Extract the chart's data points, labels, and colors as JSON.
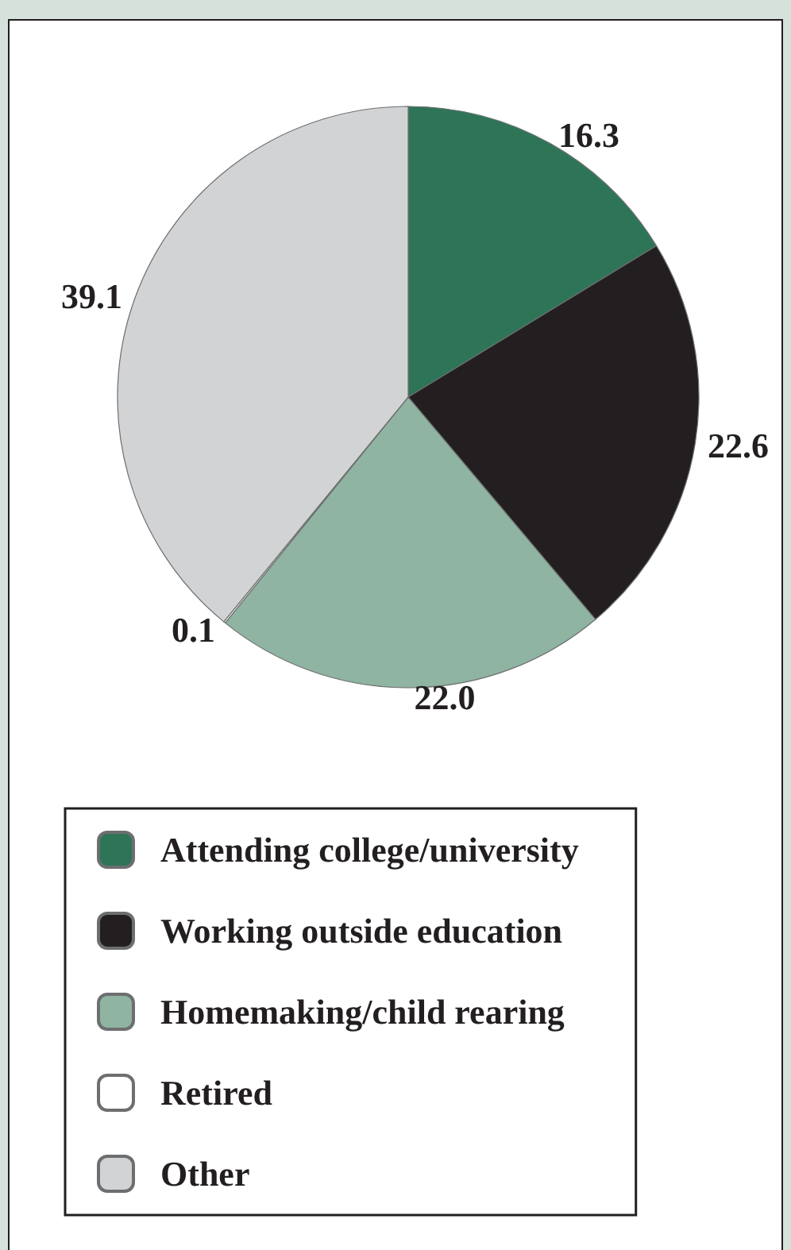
{
  "chart_data": {
    "type": "pie",
    "categories": [
      "Attending college/university",
      "Working outside education",
      "Homemaking/child rearing",
      "Retired",
      "Other"
    ],
    "values": [
      16.3,
      22.6,
      22.0,
      0.1,
      39.1
    ],
    "colors": [
      "#2e7558",
      "#231f20",
      "#8fb4a1",
      "#ffffff",
      "#d2d3d5"
    ],
    "value_labels": [
      "16.3",
      "22.6",
      "22.0",
      "0.1",
      "39.1"
    ],
    "legend": "bottom"
  }
}
